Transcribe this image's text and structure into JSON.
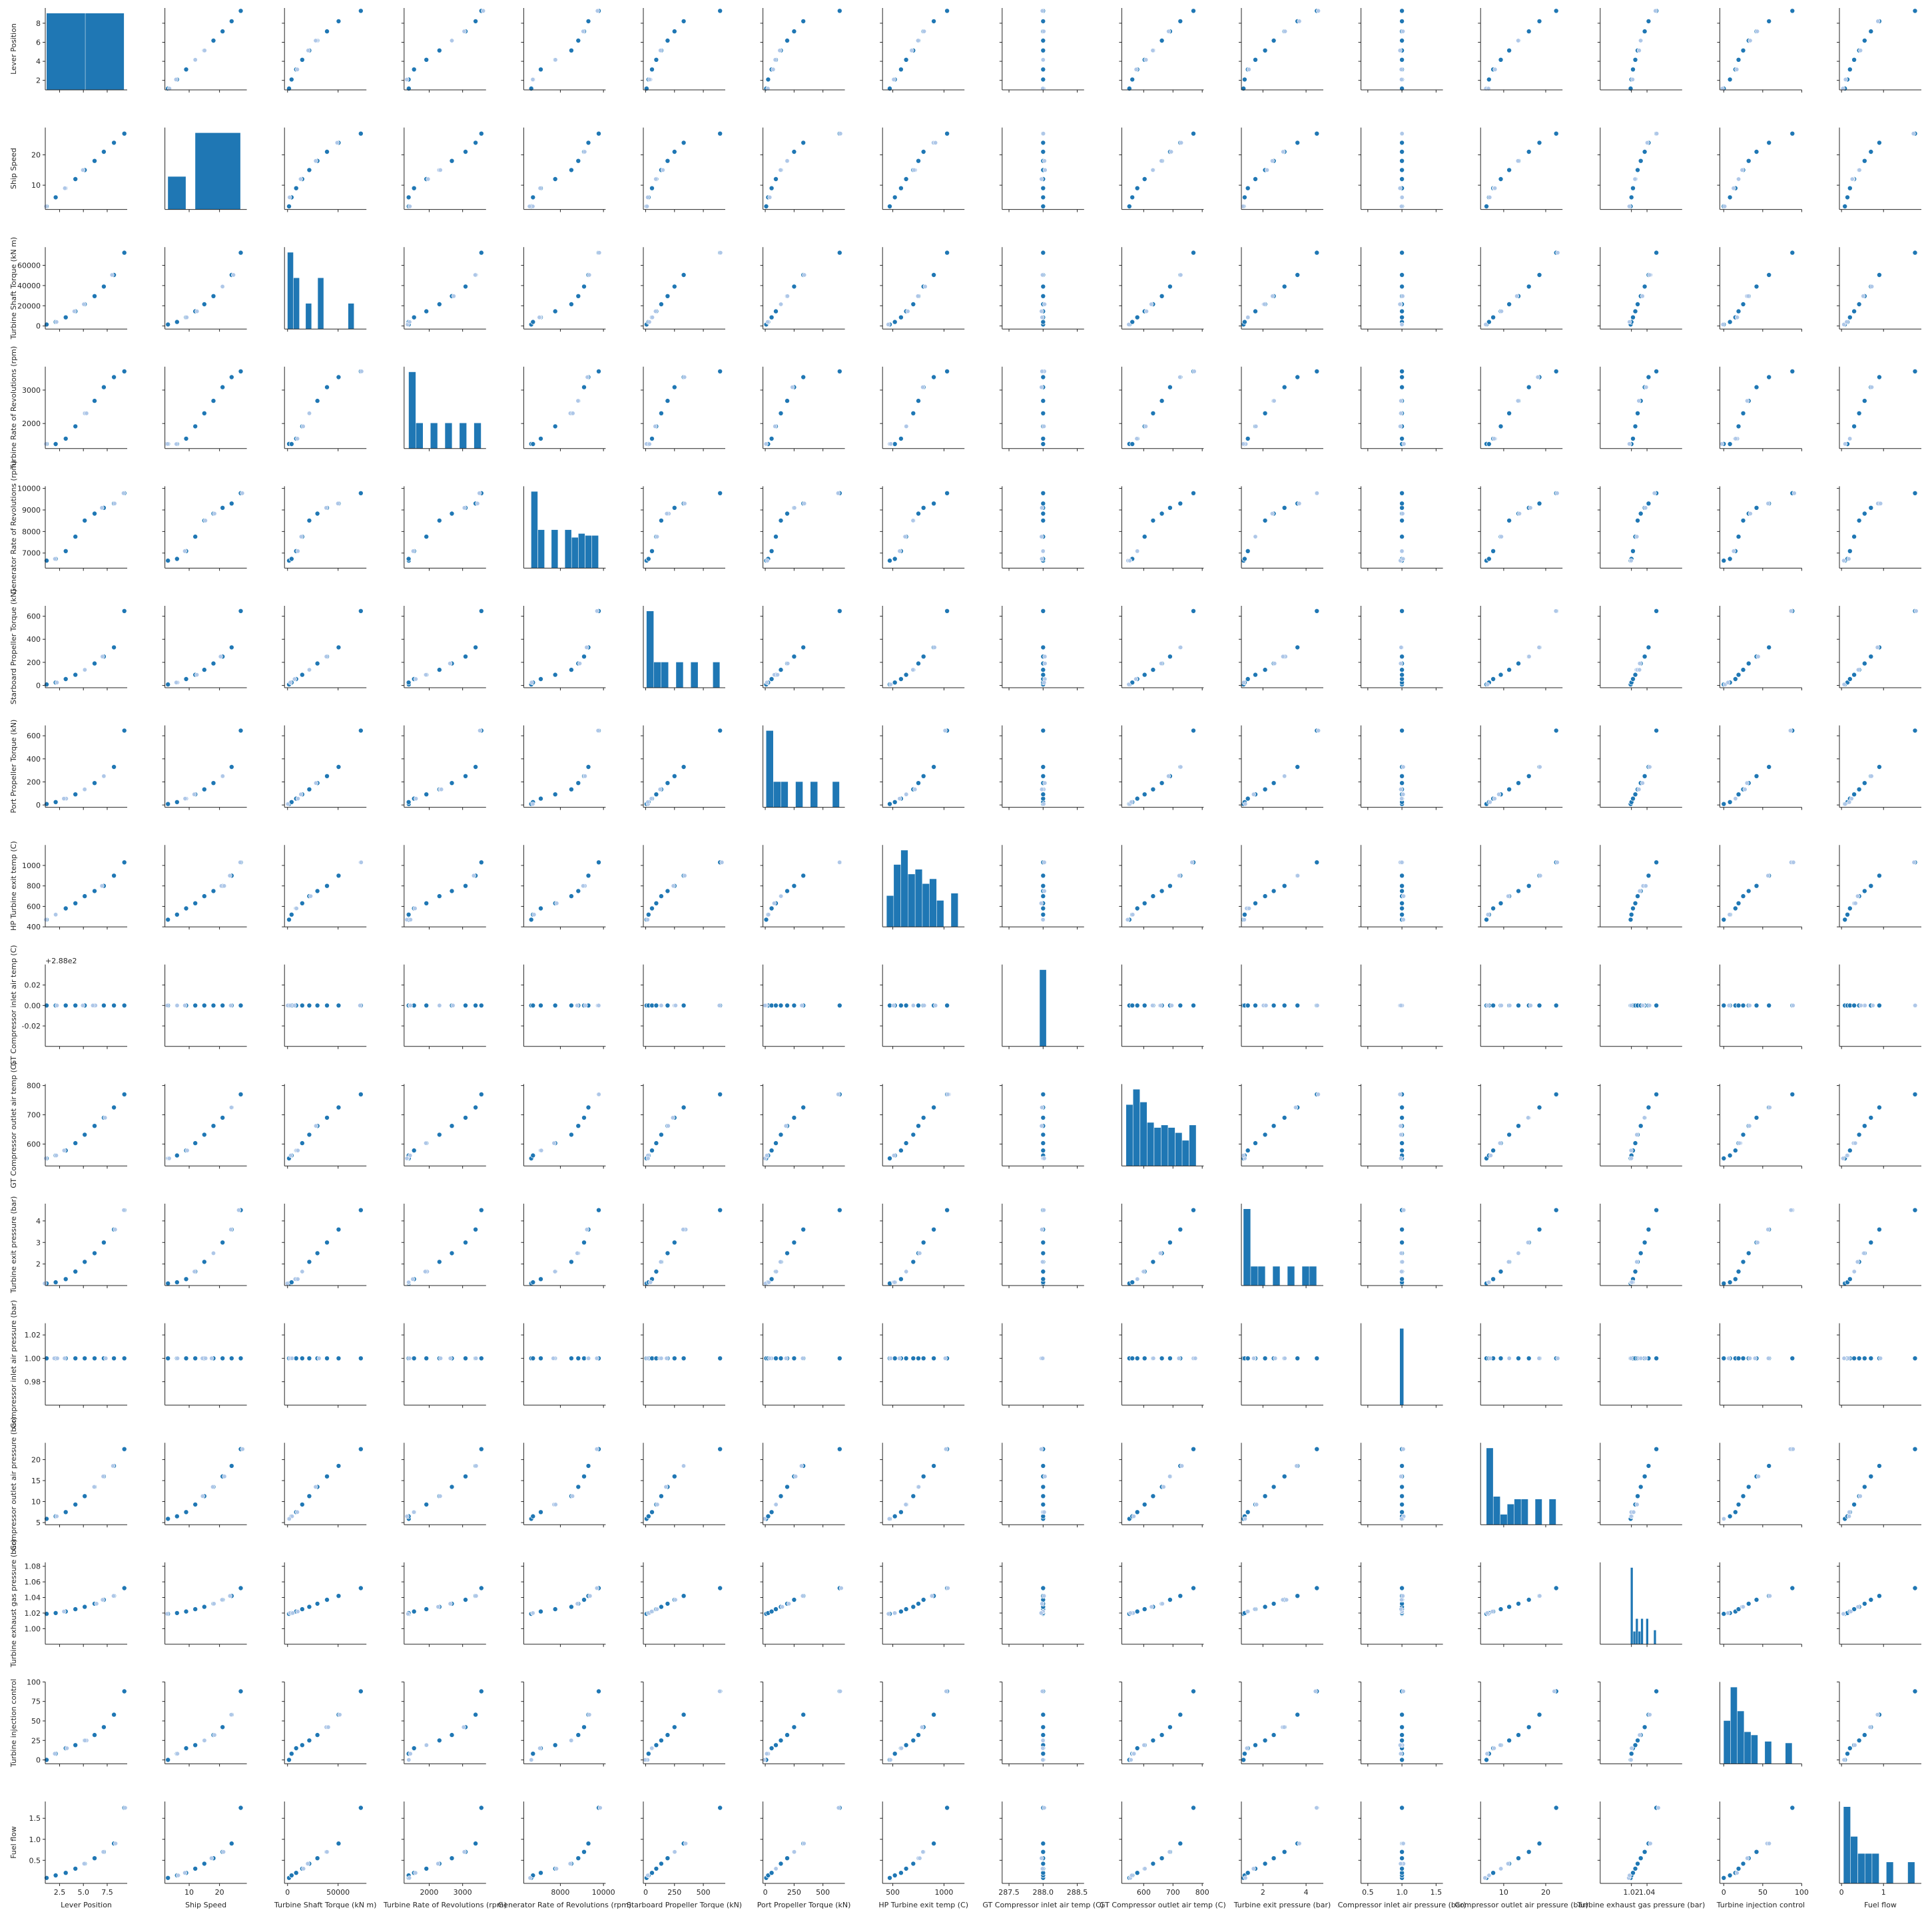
{
  "chart_data": {
    "type": "scatter",
    "variables": [
      {
        "name": "Lever Position",
        "label": "Lever Position",
        "lim": [
          1,
          9.6
        ],
        "ticks": [
          2.5,
          5.0,
          7.5
        ],
        "ytick_labels": [
          "2",
          "4",
          "6",
          "8"
        ],
        "yticks": [
          2,
          4,
          6,
          8
        ],
        "xtick_labels": [
          "2.5",
          "5.0",
          "7.5"
        ]
      },
      {
        "name": "Ship Speed",
        "label": "Ship Speed",
        "lim": [
          2,
          29
        ],
        "xticks": [
          10,
          20
        ],
        "xtick_labels": [
          "10",
          "20"
        ],
        "yticks": [
          10,
          20
        ],
        "ytick_labels": [
          "10",
          "20"
        ]
      },
      {
        "name": "Turbine Shaft Torque (kN m)",
        "label": "Turbine Shaft Torque (kN m)",
        "lim": [
          -3000,
          78000
        ],
        "xticks": [
          0,
          50000
        ],
        "xtick_labels": [
          "0",
          "50000"
        ],
        "yticks": [
          0,
          20000,
          40000,
          60000
        ],
        "ytick_labels": [
          "0",
          "20000",
          "40000",
          "60000"
        ]
      },
      {
        "name": "Turbine Rate of Revolutions (rpm)",
        "label": "Turbine Rate of Revolutions (rpm)",
        "lim": [
          1250,
          3700
        ],
        "xticks": [
          2000,
          3000
        ],
        "xtick_labels": [
          "2000",
          "3000"
        ],
        "yticks": [
          2000,
          3000
        ],
        "ytick_labels": [
          "2000",
          "3000"
        ]
      },
      {
        "name": "Generator Rate of Revolutions (rpm)",
        "label": "Generator Rate of Revolutions (rpm)",
        "lim": [
          6300,
          10100
        ],
        "xticks": [
          8000,
          10000
        ],
        "xtick_labels": [
          "8000",
          "10000"
        ],
        "yticks": [
          7000,
          8000,
          9000,
          10000
        ],
        "ytick_labels": [
          "7000",
          "8000",
          "9000",
          "10000"
        ]
      },
      {
        "name": "Starboard Propeller Torque (kN)",
        "label": "Starboard Propeller Torque (kN)",
        "lim": [
          -20,
          690
        ],
        "xticks": [
          0,
          250,
          500
        ],
        "xtick_labels": [
          "0",
          "250",
          "500"
        ],
        "yticks": [
          0,
          200,
          400,
          600
        ],
        "ytick_labels": [
          "0",
          "200",
          "400",
          "600"
        ]
      },
      {
        "name": "Port Propeller Torque (kN)",
        "label": "Port Propeller Torque (kN)",
        "lim": [
          -20,
          690
        ],
        "xticks": [
          0,
          250,
          500
        ],
        "xtick_labels": [
          "0",
          "250",
          "500"
        ],
        "yticks": [
          0,
          200,
          400,
          600
        ],
        "ytick_labels": [
          "0",
          "200",
          "400",
          "600"
        ]
      },
      {
        "name": "HP Turbine exit temp (C)",
        "label": "HP Turbine exit temp (C)",
        "lim": [
          400,
          1200
        ],
        "xticks": [
          500,
          1000
        ],
        "xtick_labels": [
          "500",
          "1000"
        ],
        "yticks": [
          400,
          600,
          800,
          1000
        ],
        "ytick_labels": [
          "400",
          "600",
          "800",
          "1000"
        ]
      },
      {
        "name": "GT Compressor inlet air temp (C)",
        "label": "GT Compressor inlet air temp (C)",
        "lim": [
          287.4,
          288.6
        ],
        "xticks": [
          287.5,
          288.0,
          288.5
        ],
        "xtick_labels": [
          "287.5",
          "288.0",
          "288.5"
        ],
        "ylim": [
          -0.04,
          0.04
        ],
        "yticks": [
          -0.02,
          0.0,
          0.02
        ],
        "ytick_labels": [
          "-0.02",
          "0.00",
          "0.02"
        ],
        "offset_text": "+2.88e2"
      },
      {
        "name": "GT Compressor outlet air temp (C)",
        "label": "GT Compressor outlet air temp (C)",
        "lim": [
          525,
          805
        ],
        "xticks": [
          600,
          700,
          800
        ],
        "xtick_labels": [
          "600",
          "700",
          "800"
        ],
        "yticks": [
          600,
          700,
          800
        ],
        "ytick_labels": [
          "600",
          "700",
          "800"
        ]
      },
      {
        "name": "Turbine exit pressure (bar)",
        "label": "Turbine exit pressure (bar)",
        "lim": [
          1.0,
          4.8
        ],
        "xticks": [
          2,
          4
        ],
        "xtick_labels": [
          "2",
          "4"
        ],
        "yticks": [
          2,
          3,
          4
        ],
        "ytick_labels": [
          "2",
          "3",
          "4"
        ]
      },
      {
        "name": "Compressor inlet air pressure (bar)",
        "label": "Compressor inlet air pressure (bar)",
        "lim": [
          0.4,
          1.6
        ],
        "xticks": [
          0.5,
          1.0,
          1.5
        ],
        "xtick_labels": [
          "0.5",
          "1.0",
          "1.5"
        ],
        "ylim": [
          0.96,
          1.03
        ],
        "yticks": [
          0.98,
          1.0,
          1.02
        ],
        "ytick_labels": [
          "0.98",
          "1.00",
          "1.02"
        ]
      },
      {
        "name": "Compressor outlet air pressure (bar)",
        "label": "Compressor outlet air pressure (bar)",
        "lim": [
          4.5,
          24
        ],
        "xticks": [
          10,
          20
        ],
        "xtick_labels": [
          "10",
          "20"
        ],
        "yticks": [
          5,
          10,
          15,
          20
        ],
        "ytick_labels": [
          "5",
          "10",
          "15",
          "20"
        ]
      },
      {
        "name": "Turbine exhaust gas pressure (bar)",
        "label": "Turbine exhaust gas pressure (bar)",
        "lim": [
          0.98,
          1.085
        ],
        "xticks": [
          1.02,
          1.04
        ],
        "xtick_labels": [
          "1.02",
          "1.04"
        ],
        "yticks": [
          1.0,
          1.02,
          1.04,
          1.06,
          1.08
        ],
        "ytick_labels": [
          "1.00",
          "1.02",
          "1.04",
          "1.06",
          "1.08"
        ]
      },
      {
        "name": "Turbine injection control",
        "label": "Turbine injection control",
        "lim": [
          -5,
          100
        ],
        "xticks": [
          0,
          50,
          100
        ],
        "xtick_labels": [
          "0",
          "50",
          "100"
        ],
        "yticks": [
          0,
          25,
          50,
          75,
          100
        ],
        "ytick_labels": [
          "0",
          "25",
          "50",
          "75",
          "100"
        ]
      },
      {
        "name": "Fuel flow",
        "label": "Fuel flow",
        "lim": [
          -0.05,
          1.9
        ],
        "xticks": [
          0,
          1
        ],
        "xtick_labels": [
          "0",
          "1"
        ],
        "yticks": [
          0.5,
          1.0,
          1.5
        ],
        "ytick_labels": [
          "0.5",
          "1.0",
          "1.5"
        ]
      }
    ],
    "levels": {
      "Lever Position": [
        1.138,
        2.088,
        3.144,
        4.161,
        5.14,
        6.175,
        7.148,
        8.206,
        9.3
      ],
      "Ship Speed": [
        3,
        6,
        9,
        12,
        15,
        18,
        21,
        24,
        27
      ],
      "Turbine Shaft Torque (kN m)": [
        1500,
        4000,
        8500,
        14500,
        21500,
        29500,
        39000,
        50500,
        72500
      ],
      "Turbine Rate of Revolutions (rpm)": [
        1390,
        1386,
        1546,
        1915,
        2306,
        2679,
        3087,
        3388,
        3560
      ],
      "Generator Rate of Revolutions (rpm)": [
        6650,
        6730,
        7090,
        7760,
        8510,
        8830,
        9100,
        9300,
        9780
      ],
      "Starboard Propeller Torque (kN)": [
        8,
        25,
        55,
        92,
        135,
        190,
        250,
        330,
        645
      ],
      "Port Propeller Torque (kN)": [
        8,
        25,
        55,
        92,
        135,
        190,
        250,
        330,
        645
      ],
      "HP Turbine exit temp (C)": [
        470,
        520,
        580,
        630,
        700,
        750,
        800,
        900,
        1030
      ],
      "GT Compressor inlet air temp (C)": [
        288,
        288,
        288,
        288,
        288,
        288,
        288,
        288,
        288
      ],
      "GT Compressor outlet air temp (C)": [
        551,
        561,
        578,
        603,
        632,
        662,
        690,
        725,
        770
      ],
      "Turbine exit pressure (bar)": [
        1.1,
        1.15,
        1.3,
        1.65,
        2.1,
        2.5,
        3.0,
        3.6,
        4.5
      ],
      "Compressor inlet air pressure (bar)": [
        1.0,
        1.0,
        1.0,
        1.0,
        1.0,
        1.0,
        1.0,
        1.0,
        1.0
      ],
      "Compressor outlet air pressure (bar)": [
        5.9,
        6.5,
        7.5,
        9.3,
        11.3,
        13.5,
        16,
        18.5,
        22.5
      ],
      "Turbine exhaust gas pressure (bar)": [
        1.019,
        1.02,
        1.022,
        1.025,
        1.028,
        1.032,
        1.037,
        1.042,
        1.052
      ],
      "Turbine injection control": [
        0,
        8,
        15,
        19,
        25,
        32,
        42,
        58,
        88
      ],
      "Fuel flow": [
        0.08,
        0.14,
        0.2,
        0.3,
        0.42,
        0.55,
        0.7,
        0.9,
        1.75
      ]
    },
    "histograms": {
      "Lever Position": {
        "edges": [
          1.138,
          5.219,
          9.3
        ],
        "counts": [
          6,
          6
        ]
      },
      "Ship Speed": {
        "edges": [
          3,
          9,
          12,
          27
        ],
        "counts": [
          3,
          0,
          7
        ]
      },
      "Turbine Shaft Torque (kN m)": {
        "edges": [
          0,
          6000,
          12000,
          18000,
          24000,
          30000,
          36000,
          42000,
          48000,
          54000,
          60000,
          66000,
          72500
        ],
        "counts": [
          3,
          2,
          0,
          1,
          0,
          2,
          0,
          0,
          0,
          0,
          1,
          0
        ]
      },
      "Turbine Rate of Revolutions (rpm)": {
        "edges": [
          1390,
          1607,
          1824,
          2041,
          2258,
          2475,
          2692,
          2909,
          3126,
          3343,
          3560
        ],
        "counts": [
          3,
          1,
          0,
          1,
          0,
          1,
          0,
          1,
          0,
          1
        ]
      },
      "Generator Rate of Revolutions (rpm)": {
        "edges": [
          6650,
          6963,
          7276,
          7589,
          7902,
          8215,
          8528,
          8841,
          9154,
          9467,
          9780
        ],
        "counts": [
          4,
          2,
          0,
          2,
          0,
          2,
          1.6,
          1.8,
          1.7,
          1.7
        ]
      },
      "Starboard Propeller Torque (kN)": {
        "edges": [
          8,
          72,
          136,
          200,
          264,
          328,
          392,
          456,
          520,
          584,
          645
        ],
        "counts": [
          3,
          1,
          1,
          0,
          1,
          0,
          1,
          0,
          0,
          1
        ]
      },
      "Port Propeller Torque (kN)": {
        "edges": [
          8,
          72,
          136,
          200,
          264,
          328,
          392,
          456,
          520,
          584,
          645
        ],
        "counts": [
          3,
          1,
          1,
          0,
          1,
          0,
          1,
          0,
          0,
          1
        ]
      },
      "HP Turbine exit temp (C)": {
        "edges": [
          440,
          510,
          580,
          650,
          720,
          790,
          860,
          930,
          1000,
          1070,
          1140
        ],
        "counts": [
          1.3,
          2.6,
          3.2,
          2.2,
          2.4,
          1.8,
          2.0,
          1.1,
          0.0,
          1.4
        ]
      },
      "GT Compressor inlet air temp (C)": {
        "edges": [
          287.95,
          288.05
        ],
        "counts": [
          1
        ]
      },
      "GT Compressor outlet air temp (C)": {
        "edges": [
          540,
          564,
          588,
          612,
          636,
          660,
          684,
          708,
          732,
          756,
          780
        ],
        "counts": [
          2.4,
          3.0,
          2.5,
          1.7,
          1.5,
          1.6,
          1.5,
          1.3,
          1.0,
          1.6
        ]
      },
      "Turbine exit pressure (bar)": {
        "edges": [
          1.1,
          1.44,
          1.78,
          2.12,
          2.46,
          2.8,
          3.14,
          3.48,
          3.82,
          4.16,
          4.5
        ],
        "counts": [
          4,
          1,
          1,
          0,
          1,
          0,
          1,
          0,
          1,
          1
        ]
      },
      "Compressor inlet air pressure (bar)": {
        "edges": [
          0.97,
          1.03
        ],
        "counts": [
          1
        ]
      },
      "Compressor outlet air pressure (bar)": {
        "edges": [
          5.9,
          7.56,
          9.22,
          10.88,
          12.54,
          14.2,
          15.86,
          17.52,
          19.18,
          20.84,
          22.5
        ],
        "counts": [
          3.0,
          1.1,
          0.4,
          0.8,
          1.0,
          1.0,
          0.0,
          1.0,
          0.0,
          1.0
        ]
      },
      "Turbine exhaust gas pressure (bar)": {
        "edges": [
          1.019,
          1.0223,
          1.0256,
          1.0289,
          1.0322,
          1.0355,
          1.0388,
          1.0421,
          1.0454,
          1.0487,
          1.052
        ],
        "counts": [
          6,
          1,
          2,
          1,
          2,
          0,
          2,
          0,
          0,
          1.1
        ]
      },
      "Turbine injection control": {
        "edges": [
          0,
          8.8,
          17.6,
          26.4,
          35.2,
          44,
          52.8,
          61.6,
          70.4,
          79.2,
          88
        ],
        "counts": [
          2.7,
          4.8,
          3.3,
          2.0,
          1.8,
          0.0,
          1.4,
          0.0,
          0.0,
          1.3
        ]
      },
      "Fuel flow": {
        "edges": [
          0.05,
          0.22,
          0.39,
          0.56,
          0.73,
          0.9,
          1.07,
          1.24,
          1.41,
          1.58,
          1.75
        ],
        "counts": [
          3.6,
          2.2,
          1.4,
          1.4,
          1.4,
          0.0,
          1.0,
          0.0,
          0.0,
          1.0
        ]
      }
    },
    "color": "#1f77b4",
    "grid": false,
    "legend": "none"
  }
}
